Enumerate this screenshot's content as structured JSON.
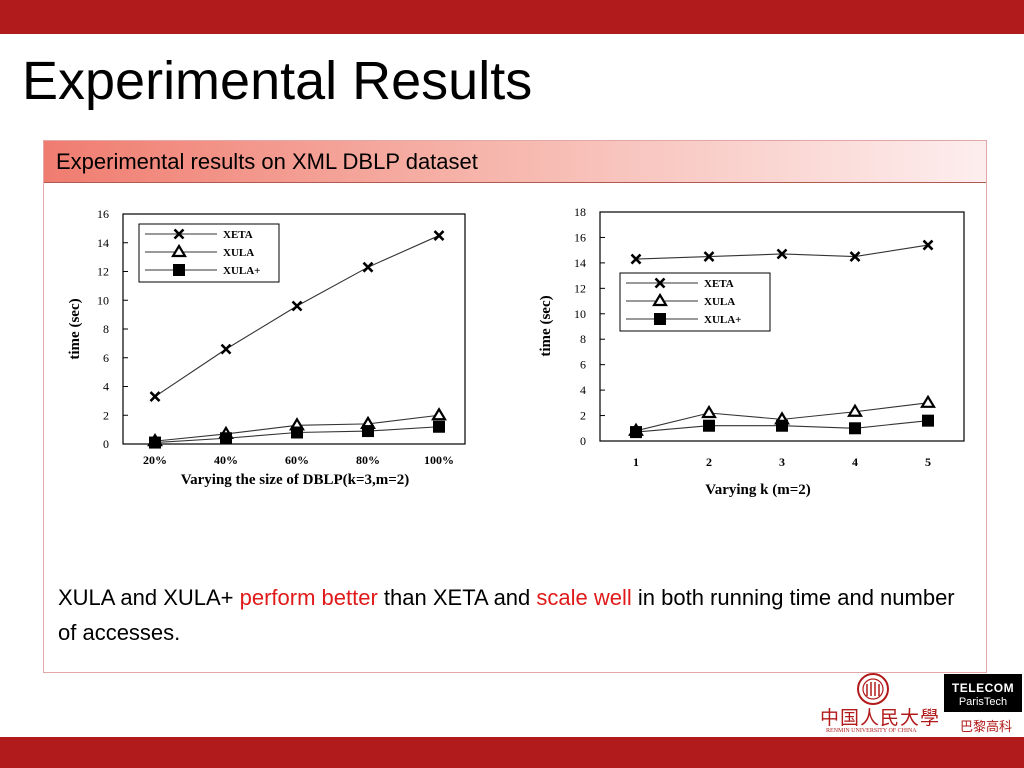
{
  "slide": {
    "title": "Experimental Results",
    "section_header": "Experimental results on XML DBLP dataset"
  },
  "caption": {
    "part1": "XULA and XULA+ ",
    "em1": "perform better",
    "part2": " than XETA and ",
    "em2": "scale well",
    "part3": " in both running time and number of accesses."
  },
  "logos": {
    "renmin_cn": "中国人民大學",
    "renmin_en": "RENMIN UNIVERSITY OF CHINA",
    "telecom_line1": "TELECOM",
    "telecom_line2": "ParisTech",
    "telecom_sub": "巴黎高科"
  },
  "colors": {
    "brand_red": "#b21b1b",
    "emphasis_red": "#e01a1a",
    "header_gradient_start": "#f07c70"
  },
  "chart_data": [
    {
      "type": "line",
      "categories": [
        "20%",
        "40%",
        "60%",
        "80%",
        "100%"
      ],
      "xlabel": "Varying the size of DBLP(k=3,m=2)",
      "ylabel": "time (sec)",
      "ylim": [
        0,
        16
      ],
      "yticks": [
        0,
        2,
        4,
        6,
        8,
        10,
        12,
        14,
        16
      ],
      "legend_position": "top-left",
      "series": [
        {
          "name": "XETA",
          "marker": "x",
          "values": [
            3.3,
            6.6,
            9.6,
            12.3,
            14.5
          ]
        },
        {
          "name": "XULA",
          "marker": "triangle",
          "values": [
            0.2,
            0.7,
            1.3,
            1.4,
            2.0
          ]
        },
        {
          "name": "XULA+",
          "marker": "square",
          "values": [
            0.1,
            0.4,
            0.8,
            0.9,
            1.2
          ]
        }
      ]
    },
    {
      "type": "line",
      "categories": [
        "1",
        "2",
        "3",
        "4",
        "5"
      ],
      "xlabel": "Varying k (m=2)",
      "ylabel": "time (sec)",
      "ylim": [
        0,
        18
      ],
      "yticks": [
        0,
        2,
        4,
        6,
        8,
        10,
        12,
        14,
        16,
        18
      ],
      "legend_position": "middle-right",
      "series": [
        {
          "name": "XETA",
          "marker": "x",
          "values": [
            14.3,
            14.5,
            14.7,
            14.5,
            15.4
          ]
        },
        {
          "name": "XULA",
          "marker": "triangle",
          "values": [
            0.8,
            2.2,
            1.7,
            2.3,
            3.0
          ]
        },
        {
          "name": "XULA+",
          "marker": "square",
          "values": [
            0.7,
            1.2,
            1.2,
            1.0,
            1.6
          ]
        }
      ]
    }
  ]
}
